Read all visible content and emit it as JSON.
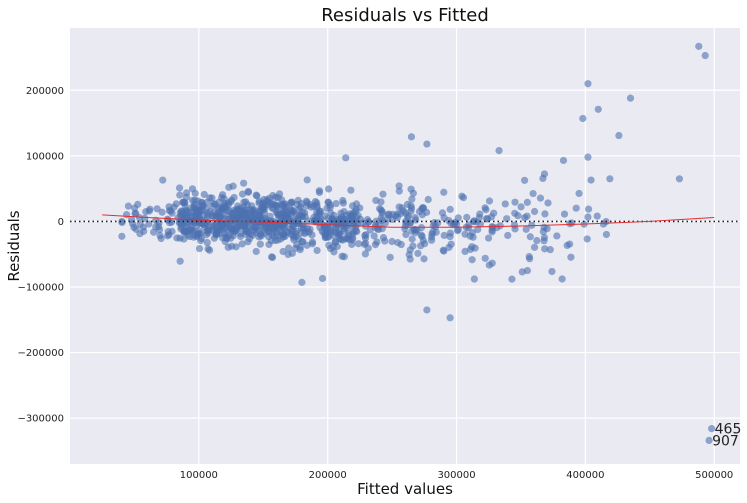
{
  "chart_data": {
    "type": "scatter",
    "title": "Residuals vs Fitted",
    "xlabel": "Fitted values",
    "ylabel": "Residuals",
    "xlim": [
      0,
      520000
    ],
    "ylim": [
      -370000,
      295000
    ],
    "xticks": [
      100000,
      200000,
      300000,
      400000,
      500000
    ],
    "xtick_labels": [
      "100000",
      "200000",
      "300000",
      "400000",
      "500000"
    ],
    "yticks": [
      -300000,
      -200000,
      -100000,
      0,
      100000,
      200000
    ],
    "ytick_labels": [
      "−300000",
      "−200000",
      "−100000",
      "0",
      "100000",
      "200000"
    ],
    "grid": true,
    "reference_line": {
      "y": 0,
      "style": "dotted",
      "color": "#222222"
    },
    "colors": {
      "points": "#4c72b0",
      "lowess": "#e03030",
      "background": "#eaeaf2",
      "grid": "#ffffff"
    },
    "lowess": {
      "x": [
        25000,
        60000,
        100000,
        150000,
        200000,
        250000,
        300000,
        350000,
        400000,
        450000,
        500000
      ],
      "y": [
        10000,
        6000,
        2000,
        -1000,
        -5000,
        -9000,
        -9000,
        -7000,
        -4000,
        0,
        6000
      ]
    },
    "outliers": [
      {
        "x": 498000,
        "y": -316000,
        "label": "465"
      },
      {
        "x": 496000,
        "y": -334000,
        "label": "907"
      }
    ],
    "highlights": [
      {
        "x": 488000,
        "y": 267000
      },
      {
        "x": 493000,
        "y": 253000
      },
      {
        "x": 402000,
        "y": 210000
      },
      {
        "x": 435000,
        "y": 188000
      },
      {
        "x": 410000,
        "y": 171000
      },
      {
        "x": 398000,
        "y": 157000
      },
      {
        "x": 426000,
        "y": 131000
      },
      {
        "x": 265000,
        "y": 129000
      },
      {
        "x": 277000,
        "y": 118000
      },
      {
        "x": 333000,
        "y": 108000
      },
      {
        "x": 402000,
        "y": 98000
      },
      {
        "x": 214000,
        "y": 97000
      },
      {
        "x": 383000,
        "y": 93000
      },
      {
        "x": 473000,
        "y": 65000
      },
      {
        "x": 419000,
        "y": 65000
      },
      {
        "x": 72000,
        "y": 63000
      },
      {
        "x": 180000,
        "y": -93000
      },
      {
        "x": 196000,
        "y": -87000
      },
      {
        "x": 343000,
        "y": -88000
      },
      {
        "x": 277000,
        "y": -135000
      },
      {
        "x": 295000,
        "y": -147000
      },
      {
        "x": 351000,
        "y": -77000
      },
      {
        "x": 414000,
        "y": -4000
      },
      {
        "x": 355000,
        "y": -75000
      }
    ],
    "cloud": [
      {
        "x0": 40000,
        "x1": 85000,
        "yc": 5000,
        "ys": 17000,
        "n": 50
      },
      {
        "x0": 85000,
        "x1": 130000,
        "yc": 2000,
        "ys": 18000,
        "n": 250
      },
      {
        "x0": 130000,
        "x1": 175000,
        "yc": 0,
        "ys": 19000,
        "n": 260
      },
      {
        "x0": 175000,
        "x1": 225000,
        "yc": -3000,
        "ys": 21000,
        "n": 190
      },
      {
        "x0": 225000,
        "x1": 275000,
        "yc": -7000,
        "ys": 24000,
        "n": 95
      },
      {
        "x0": 275000,
        "x1": 330000,
        "yc": -8000,
        "ys": 28000,
        "n": 70
      },
      {
        "x0": 330000,
        "x1": 390000,
        "yc": -4000,
        "ys": 32000,
        "n": 45
      },
      {
        "x0": 390000,
        "x1": 420000,
        "yc": 8000,
        "ys": 30000,
        "n": 10
      }
    ]
  }
}
